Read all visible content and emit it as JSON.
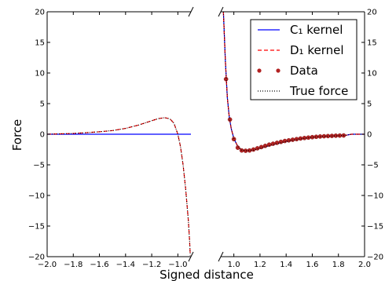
{
  "chart_data": {
    "type": "line",
    "xlabel": "Signed distance",
    "ylabel": "Force",
    "ylim": [
      -20,
      20
    ],
    "yticks": [
      "20",
      "15",
      "10",
      "5",
      "0",
      "−5",
      "−10",
      "−15",
      "−20"
    ],
    "left_panel": {
      "xlim": [
        -2.0,
        -0.9
      ],
      "xticks": [
        "−2.0",
        "−1.8",
        "−1.6",
        "−1.4",
        "−1.2",
        "−1.0"
      ]
    },
    "right_panel": {
      "xlim": [
        0.9,
        2.0
      ],
      "xticks": [
        "1.0",
        "1.2",
        "1.4",
        "1.6",
        "1.8",
        "2.0"
      ]
    },
    "grid": false,
    "legend_position": "top-right",
    "series": [
      {
        "name": "C₁ kernel",
        "style": "solid",
        "color": "#0000ff",
        "left": {
          "x": [
            -2.0,
            -0.9
          ],
          "y": [
            0,
            0
          ]
        },
        "right": {
          "x": [
            0.92,
            0.935,
            0.95,
            0.965,
            0.98,
            1.0,
            1.03,
            1.06,
            1.1,
            1.15,
            1.2,
            1.3,
            1.4,
            1.5,
            1.6,
            1.7,
            1.8,
            1.85,
            1.9,
            2.0
          ],
          "y": [
            20,
            12,
            6,
            2.8,
            0.9,
            -0.7,
            -2.0,
            -2.6,
            -2.7,
            -2.6,
            -2.3,
            -1.7,
            -1.2,
            -0.8,
            -0.5,
            -0.35,
            -0.25,
            -0.2,
            0,
            0
          ]
        }
      },
      {
        "name": "D₁ kernel",
        "style": "dashed",
        "color": "#ff0000",
        "left": {
          "x": [
            -2.0,
            -1.9,
            -1.8,
            -1.7,
            -1.6,
            -1.5,
            -1.4,
            -1.3,
            -1.2,
            -1.15,
            -1.1,
            -1.06,
            -1.03,
            -1.0,
            -0.98,
            -0.96,
            -0.94,
            -0.92,
            -0.91,
            -0.905
          ],
          "y": [
            0,
            0.06,
            0.12,
            0.25,
            0.4,
            0.6,
            0.95,
            1.5,
            2.2,
            2.55,
            2.7,
            2.5,
            1.8,
            0,
            -2.0,
            -5.0,
            -9.0,
            -14.0,
            -17.5,
            -19.8
          ]
        },
        "right": {
          "x": [
            0.92,
            0.935,
            0.95,
            0.965,
            0.98,
            1.0,
            1.03,
            1.06,
            1.1,
            1.15,
            1.2,
            1.3,
            1.4,
            1.5,
            1.6,
            1.7,
            1.8,
            1.85,
            1.9,
            2.0
          ],
          "y": [
            20,
            12,
            6,
            2.8,
            0.9,
            -0.7,
            -2.0,
            -2.6,
            -2.7,
            -2.6,
            -2.3,
            -1.7,
            -1.2,
            -0.8,
            -0.5,
            -0.35,
            -0.25,
            -0.2,
            0,
            0
          ]
        }
      },
      {
        "name": "Data",
        "style": "markers",
        "color": "#b22222",
        "right": {
          "x": [
            0.94,
            0.97,
            1.0,
            1.03,
            1.06,
            1.09,
            1.12,
            1.15,
            1.18,
            1.21,
            1.24,
            1.27,
            1.3,
            1.33,
            1.36,
            1.39,
            1.42,
            1.45,
            1.48,
            1.51,
            1.54,
            1.57,
            1.6,
            1.63,
            1.66,
            1.69,
            1.72,
            1.75,
            1.78,
            1.81,
            1.84
          ],
          "y": [
            9.0,
            2.4,
            -0.8,
            -2.2,
            -2.65,
            -2.7,
            -2.65,
            -2.5,
            -2.3,
            -2.1,
            -1.9,
            -1.7,
            -1.55,
            -1.4,
            -1.25,
            -1.1,
            -1.0,
            -0.9,
            -0.8,
            -0.7,
            -0.62,
            -0.55,
            -0.48,
            -0.42,
            -0.37,
            -0.33,
            -0.3,
            -0.27,
            -0.24,
            -0.22,
            -0.2
          ]
        }
      },
      {
        "name": "True force",
        "style": "dotted",
        "color": "#000000",
        "left": {
          "x": [
            -2.0,
            -1.9,
            -1.8,
            -1.7,
            -1.6,
            -1.5,
            -1.4,
            -1.3,
            -1.2,
            -1.15,
            -1.1,
            -1.06,
            -1.03,
            -1.0,
            -0.98,
            -0.96,
            -0.94,
            -0.92,
            -0.91,
            -0.905
          ],
          "y": [
            0,
            0.06,
            0.12,
            0.25,
            0.4,
            0.6,
            0.95,
            1.5,
            2.2,
            2.55,
            2.7,
            2.5,
            1.8,
            0,
            -2.0,
            -5.0,
            -9.0,
            -14.0,
            -17.5,
            -19.8
          ]
        },
        "right": {
          "x": [
            0.92,
            0.935,
            0.95,
            0.965,
            0.98,
            1.0,
            1.03,
            1.06,
            1.1,
            1.15,
            1.2,
            1.3,
            1.4,
            1.5,
            1.6,
            1.7,
            1.8,
            1.85,
            1.9,
            2.0
          ],
          "y": [
            20,
            12,
            6,
            2.8,
            0.9,
            -0.7,
            -2.0,
            -2.6,
            -2.7,
            -2.6,
            -2.3,
            -1.7,
            -1.2,
            -0.8,
            -0.5,
            -0.35,
            -0.25,
            -0.2,
            0,
            0
          ]
        }
      }
    ]
  }
}
